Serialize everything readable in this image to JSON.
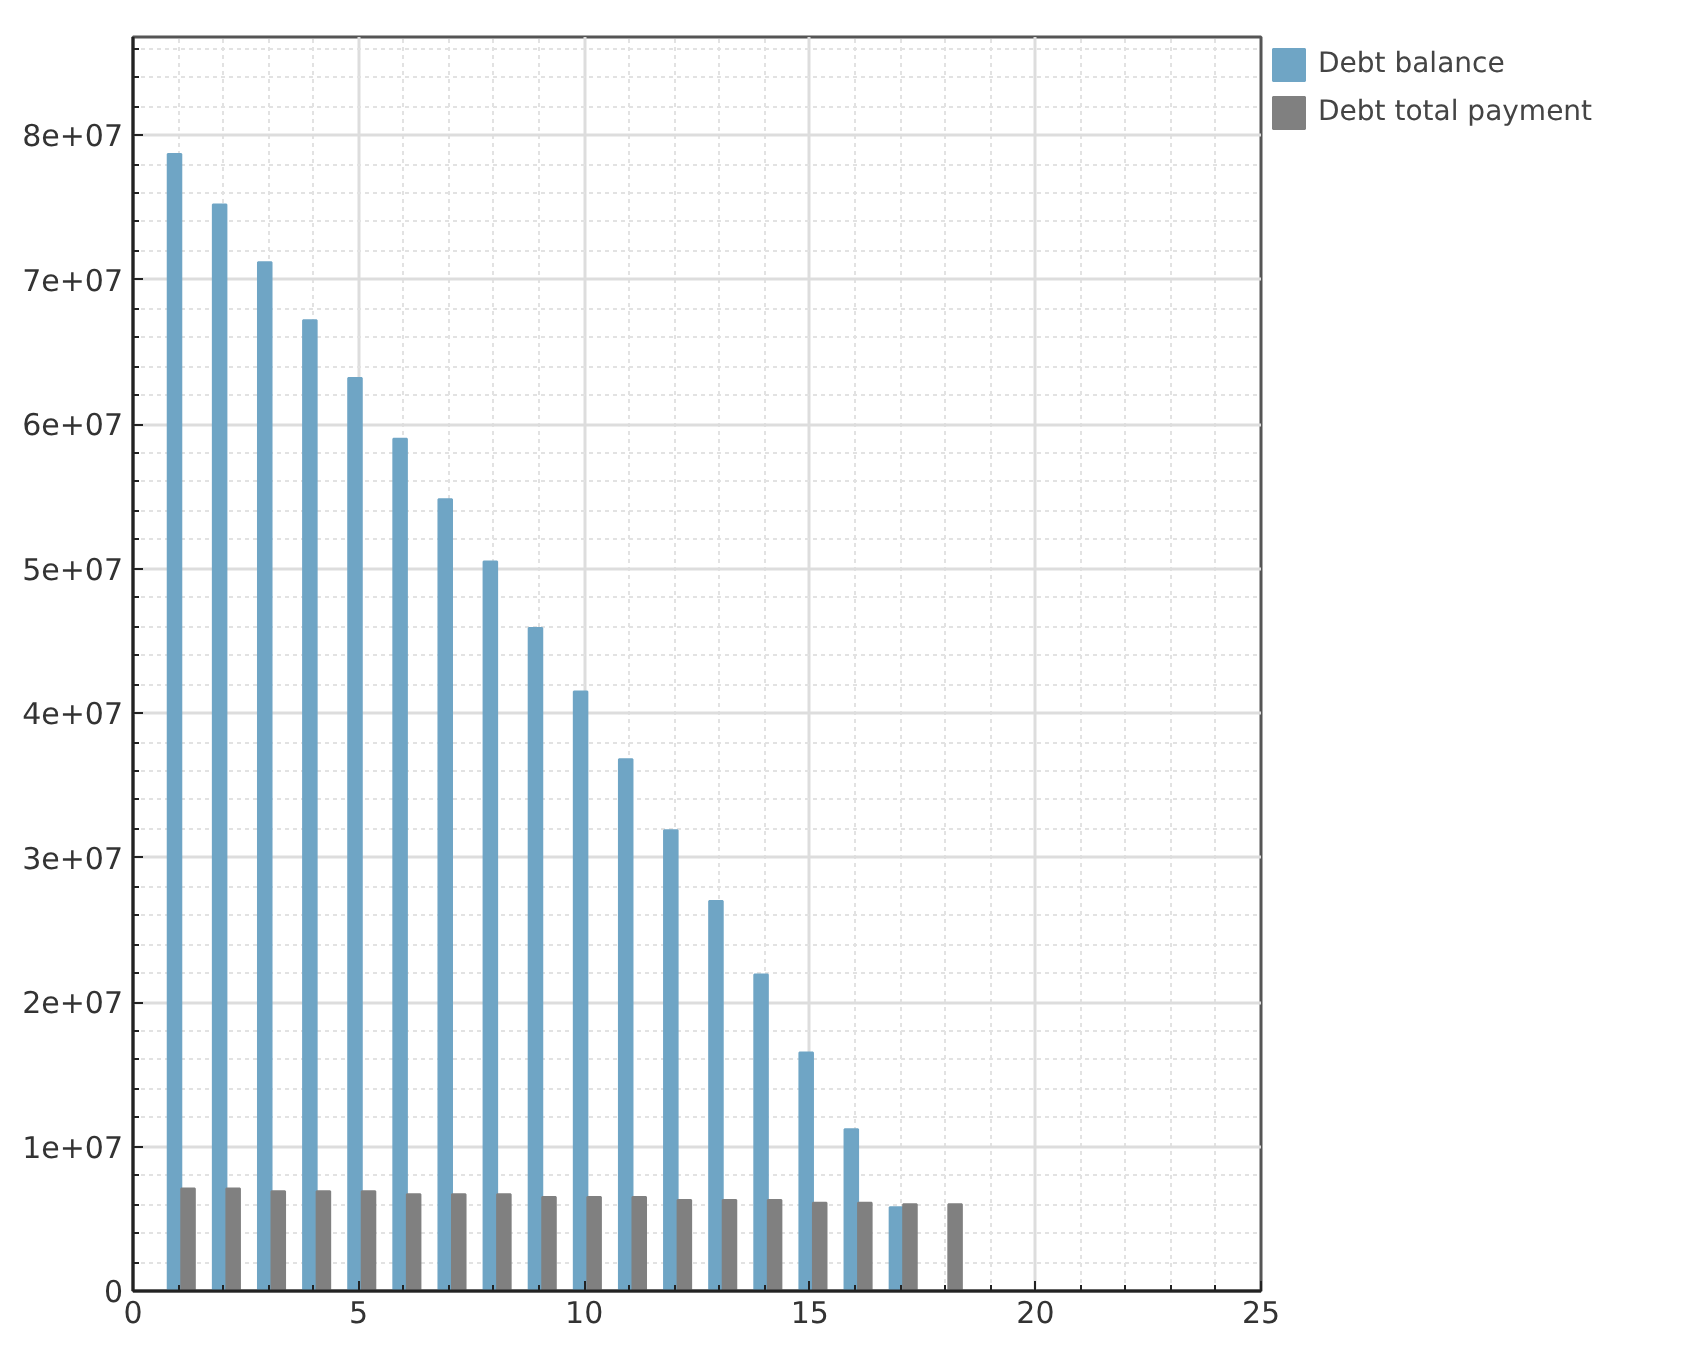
{
  "chart_data": {
    "type": "bar",
    "x": [
      1,
      2,
      3,
      4,
      5,
      6,
      7,
      8,
      9,
      10,
      11,
      12,
      13,
      14,
      15,
      16,
      17,
      18
    ],
    "series": [
      {
        "name": "Debt balance",
        "color": "#6fa5c5",
        "values": [
          78700000,
          75200000,
          71200000,
          67200000,
          63200000,
          59000000,
          54800000,
          50500000,
          45900000,
          41500000,
          36800000,
          31900000,
          27000000,
          21900000,
          16500000,
          11200000,
          5800000,
          null
        ]
      },
      {
        "name": "Debt total payment",
        "color": "#808080",
        "values": [
          7100000,
          7100000,
          6900000,
          6900000,
          6900000,
          6700000,
          6700000,
          6700000,
          6500000,
          6500000,
          6500000,
          6300000,
          6300000,
          6300000,
          6100000,
          6100000,
          6000000,
          6000000
        ]
      }
    ],
    "xlim": [
      0,
      25
    ],
    "xticks": [
      0,
      5,
      10,
      15,
      20,
      25
    ],
    "ylim": [
      0,
      86800000
    ],
    "yticks": [
      0,
      {
        "value": 10000000,
        "label": "1e+07"
      },
      {
        "value": 20000000,
        "label": "2e+07"
      },
      {
        "value": 30000000,
        "label": "3e+07"
      },
      {
        "value": 40000000,
        "label": "4e+07"
      },
      {
        "value": 50000000,
        "label": "5e+07"
      },
      {
        "value": 60000000,
        "label": "6e+07"
      },
      {
        "value": 70000000,
        "label": "7e+07"
      },
      {
        "value": 80000000,
        "label": "8e+07"
      }
    ],
    "grid": true,
    "legend": "right"
  }
}
